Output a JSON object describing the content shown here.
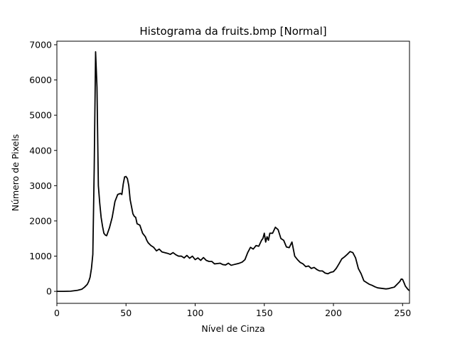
{
  "chart_data": {
    "type": "line",
    "title": "Histograma da fruits.bmp [Normal]",
    "xlabel": "Nível de Cinza",
    "ylabel": "Número de Pixels",
    "xlim": [
      0,
      255
    ],
    "ylim": [
      -340,
      7100
    ],
    "xticks": [
      0,
      50,
      100,
      150,
      200,
      250
    ],
    "yticks": [
      0,
      1000,
      2000,
      3000,
      4000,
      5000,
      6000,
      7000
    ],
    "grid": false,
    "series": [
      {
        "color": "#000000",
        "points": [
          [
            0,
            0
          ],
          [
            5,
            0
          ],
          [
            10,
            5
          ],
          [
            15,
            30
          ],
          [
            18,
            60
          ],
          [
            20,
            120
          ],
          [
            22,
            200
          ],
          [
            23,
            280
          ],
          [
            24,
            400
          ],
          [
            25,
            650
          ],
          [
            26,
            1050
          ],
          [
            27,
            3500
          ],
          [
            28,
            6800
          ],
          [
            29,
            5800
          ],
          [
            30,
            3000
          ],
          [
            31,
            2500
          ],
          [
            32,
            2100
          ],
          [
            33,
            1850
          ],
          [
            34,
            1650
          ],
          [
            35,
            1600
          ],
          [
            36,
            1580
          ],
          [
            38,
            1800
          ],
          [
            40,
            2100
          ],
          [
            42,
            2550
          ],
          [
            44,
            2750
          ],
          [
            46,
            2780
          ],
          [
            47,
            2750
          ],
          [
            48,
            3050
          ],
          [
            49,
            3250
          ],
          [
            50,
            3260
          ],
          [
            51,
            3200
          ],
          [
            52,
            3000
          ],
          [
            53,
            2600
          ],
          [
            54,
            2400
          ],
          [
            55,
            2200
          ],
          [
            56,
            2130
          ],
          [
            57,
            2100
          ],
          [
            58,
            1920
          ],
          [
            59,
            1900
          ],
          [
            60,
            1880
          ],
          [
            62,
            1650
          ],
          [
            64,
            1550
          ],
          [
            65,
            1450
          ],
          [
            66,
            1380
          ],
          [
            68,
            1300
          ],
          [
            70,
            1250
          ],
          [
            72,
            1150
          ],
          [
            74,
            1200
          ],
          [
            76,
            1120
          ],
          [
            78,
            1100
          ],
          [
            80,
            1080
          ],
          [
            82,
            1050
          ],
          [
            84,
            1100
          ],
          [
            86,
            1040
          ],
          [
            88,
            1000
          ],
          [
            90,
            1000
          ],
          [
            92,
            950
          ],
          [
            94,
            1020
          ],
          [
            96,
            940
          ],
          [
            98,
            1000
          ],
          [
            100,
            900
          ],
          [
            102,
            950
          ],
          [
            104,
            880
          ],
          [
            106,
            960
          ],
          [
            108,
            880
          ],
          [
            110,
            850
          ],
          [
            112,
            850
          ],
          [
            114,
            780
          ],
          [
            116,
            790
          ],
          [
            118,
            800
          ],
          [
            120,
            760
          ],
          [
            122,
            750
          ],
          [
            124,
            800
          ],
          [
            126,
            740
          ],
          [
            128,
            760
          ],
          [
            130,
            780
          ],
          [
            132,
            800
          ],
          [
            134,
            830
          ],
          [
            136,
            900
          ],
          [
            138,
            1100
          ],
          [
            140,
            1250
          ],
          [
            142,
            1200
          ],
          [
            144,
            1300
          ],
          [
            146,
            1280
          ],
          [
            148,
            1450
          ],
          [
            149,
            1500
          ],
          [
            150,
            1650
          ],
          [
            151,
            1400
          ],
          [
            152,
            1550
          ],
          [
            153,
            1450
          ],
          [
            154,
            1650
          ],
          [
            156,
            1650
          ],
          [
            158,
            1820
          ],
          [
            160,
            1750
          ],
          [
            162,
            1500
          ],
          [
            164,
            1450
          ],
          [
            166,
            1260
          ],
          [
            168,
            1240
          ],
          [
            170,
            1400
          ],
          [
            172,
            1000
          ],
          [
            174,
            900
          ],
          [
            176,
            820
          ],
          [
            178,
            780
          ],
          [
            180,
            700
          ],
          [
            182,
            720
          ],
          [
            184,
            650
          ],
          [
            186,
            680
          ],
          [
            188,
            620
          ],
          [
            190,
            580
          ],
          [
            192,
            580
          ],
          [
            194,
            520
          ],
          [
            196,
            500
          ],
          [
            198,
            540
          ],
          [
            200,
            560
          ],
          [
            202,
            650
          ],
          [
            204,
            780
          ],
          [
            206,
            920
          ],
          [
            208,
            980
          ],
          [
            210,
            1050
          ],
          [
            212,
            1130
          ],
          [
            214,
            1100
          ],
          [
            216,
            950
          ],
          [
            218,
            650
          ],
          [
            220,
            500
          ],
          [
            222,
            300
          ],
          [
            224,
            250
          ],
          [
            226,
            200
          ],
          [
            228,
            170
          ],
          [
            230,
            130
          ],
          [
            232,
            100
          ],
          [
            234,
            90
          ],
          [
            236,
            80
          ],
          [
            238,
            70
          ],
          [
            240,
            80
          ],
          [
            242,
            100
          ],
          [
            244,
            120
          ],
          [
            246,
            200
          ],
          [
            248,
            280
          ],
          [
            249,
            350
          ],
          [
            250,
            340
          ],
          [
            251,
            250
          ],
          [
            252,
            150
          ],
          [
            253,
            100
          ],
          [
            254,
            50
          ],
          [
            255,
            20
          ]
        ]
      }
    ]
  }
}
